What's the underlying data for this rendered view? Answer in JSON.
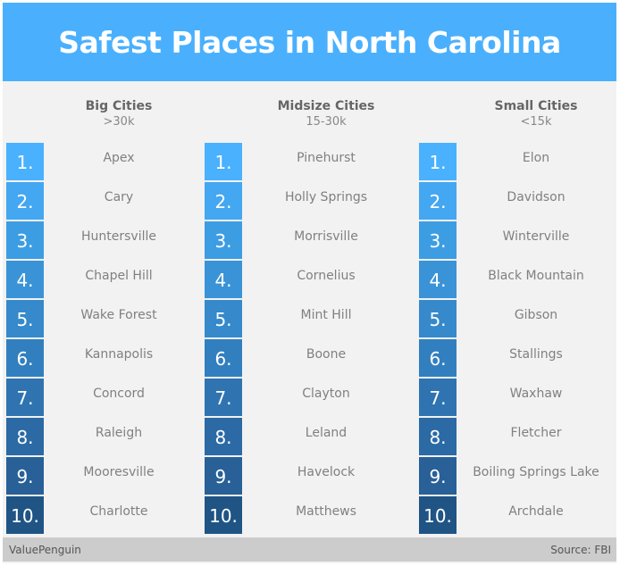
{
  "header": {
    "title": "Safest Places in North Carolina"
  },
  "colors": {
    "header_bg": "#4ab0fd",
    "rank_colors": [
      "#49b1fe",
      "#44a7f1",
      "#3d9de3",
      "#3a93d7",
      "#3689ca",
      "#327fbf",
      "#2f74b1",
      "#2b6aa4",
      "#286097",
      "#1f5485"
    ]
  },
  "columns": [
    {
      "title": "Big Cities",
      "subtitle": ">30k",
      "items": [
        {
          "rank": "1.",
          "city": "Apex"
        },
        {
          "rank": "2.",
          "city": "Cary"
        },
        {
          "rank": "3.",
          "city": "Huntersville"
        },
        {
          "rank": "4.",
          "city": "Chapel Hill"
        },
        {
          "rank": "5.",
          "city": "Wake Forest"
        },
        {
          "rank": "6.",
          "city": "Kannapolis"
        },
        {
          "rank": "7.",
          "city": "Concord"
        },
        {
          "rank": "8.",
          "city": "Raleigh"
        },
        {
          "rank": "9.",
          "city": "Mooresville"
        },
        {
          "rank": "10.",
          "city": "Charlotte"
        }
      ]
    },
    {
      "title": "Midsize Cities",
      "subtitle": "15-30k",
      "items": [
        {
          "rank": "1.",
          "city": "Pinehurst"
        },
        {
          "rank": "2.",
          "city": "Holly Springs"
        },
        {
          "rank": "3.",
          "city": "Morrisville"
        },
        {
          "rank": "4.",
          "city": "Cornelius"
        },
        {
          "rank": "5.",
          "city": "Mint Hill"
        },
        {
          "rank": "6.",
          "city": "Boone"
        },
        {
          "rank": "7.",
          "city": "Clayton"
        },
        {
          "rank": "8.",
          "city": "Leland"
        },
        {
          "rank": "9.",
          "city": "Havelock"
        },
        {
          "rank": "10.",
          "city": "Matthews"
        }
      ]
    },
    {
      "title": "Small Cities",
      "subtitle": "<15k",
      "items": [
        {
          "rank": "1.",
          "city": "Elon"
        },
        {
          "rank": "2.",
          "city": "Davidson"
        },
        {
          "rank": "3.",
          "city": "Winterville"
        },
        {
          "rank": "4.",
          "city": "Black Mountain"
        },
        {
          "rank": "5.",
          "city": "Gibson"
        },
        {
          "rank": "6.",
          "city": "Stallings"
        },
        {
          "rank": "7.",
          "city": "Waxhaw"
        },
        {
          "rank": "8.",
          "city": "Fletcher"
        },
        {
          "rank": "9.",
          "city": "Boiling Springs Lake"
        },
        {
          "rank": "10.",
          "city": "Archdale"
        }
      ]
    }
  ],
  "footer": {
    "brand": "ValuePenguin",
    "source": "Source: FBI"
  }
}
